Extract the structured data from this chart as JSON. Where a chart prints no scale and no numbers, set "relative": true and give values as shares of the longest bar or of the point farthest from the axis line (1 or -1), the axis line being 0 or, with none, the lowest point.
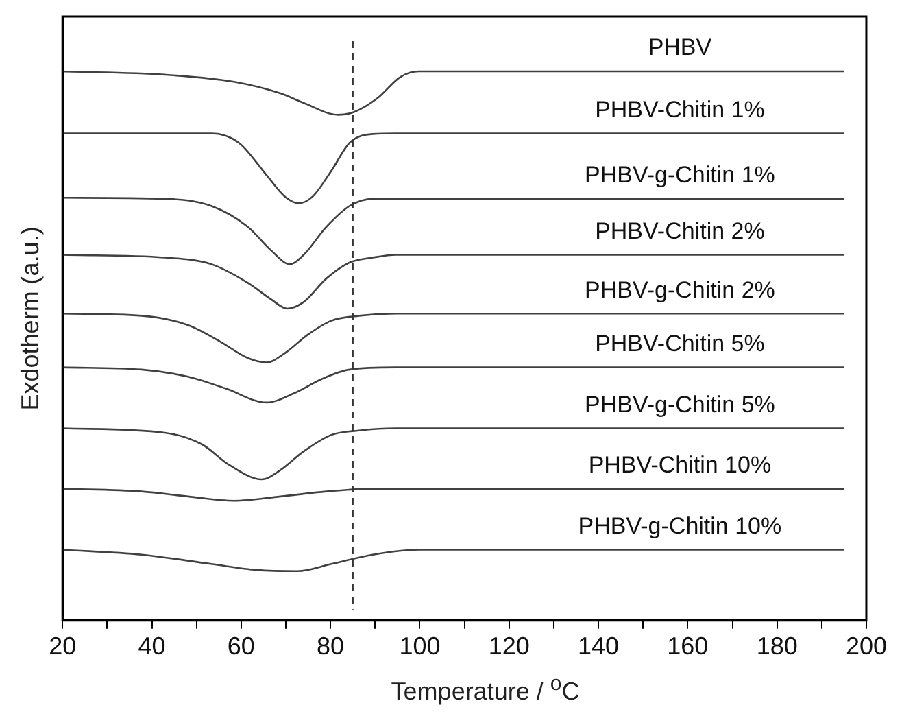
{
  "chart_data": {
    "type": "line",
    "xlabel": "Temperature / $^{o}$C",
    "ylabel": "Exdotherm (a.u.)",
    "relative": true,
    "xlim": [
      20,
      200
    ],
    "xticks": [
      20,
      {
        "value": 30,
        "label": null
      },
      40,
      {
        "value": 50,
        "label": null
      },
      60,
      {
        "value": 70,
        "label": null
      },
      80,
      {
        "value": 90,
        "label": null
      },
      100,
      {
        "value": 110,
        "label": null
      },
      120,
      {
        "value": 130,
        "label": null
      },
      140,
      {
        "value": 150,
        "label": null
      },
      160,
      {
        "value": 170,
        "label": null
      },
      180,
      {
        "value": 190,
        "label": null
      },
      200
    ],
    "grid": false,
    "legend": false,
    "marker": "none",
    "line_style": "solid",
    "ref_lines": [
      {
        "axis": "x",
        "value": 85,
        "color": "#333333",
        "line_style": "dashed"
      }
    ],
    "series": [
      {
        "name": "PHBV",
        "color": "#404040",
        "x": [
          20,
          42.9,
          58.4,
          68.8,
          73.9,
          81.7,
          85.3,
          90.5,
          95.7,
          99.8,
          195
        ],
        "values": [
          1.0,
          0.994,
          0.981,
          0.96,
          0.943,
          0.921,
          0.926,
          0.951,
          0.99,
          1.0,
          1.0
        ]
      },
      {
        "name": "PHBV-Chitin 1%",
        "color": "#404040",
        "x": [
          20,
          53.3,
          59.5,
          65.7,
          69.8,
          72.9,
          76.0,
          80.2,
          84.3,
          89.5,
          94.7,
          195
        ],
        "values": [
          0.887,
          0.887,
          0.87,
          0.811,
          0.772,
          0.76,
          0.772,
          0.819,
          0.87,
          0.886,
          0.887,
          0.887
        ]
      },
      {
        "name": "PHBV-g-Chitin 1%",
        "color": "#404040",
        "x": [
          20,
          42.9,
          53.3,
          61.5,
          66.7,
          70.9,
          74.0,
          79.1,
          84.3,
          89.5,
          195
        ],
        "values": [
          0.77,
          0.768,
          0.755,
          0.717,
          0.674,
          0.649,
          0.666,
          0.717,
          0.755,
          0.768,
          0.768
        ]
      },
      {
        "name": "PHBV-Chitin 2%",
        "color": "#404040",
        "x": [
          20,
          42.9,
          53.3,
          61.5,
          66.7,
          70.3,
          74.0,
          79.1,
          84.3,
          89.5,
          94.7,
          195
        ],
        "values": [
          0.666,
          0.661,
          0.649,
          0.615,
          0.585,
          0.568,
          0.58,
          0.623,
          0.652,
          0.661,
          0.666,
          0.666
        ]
      },
      {
        "name": "PHBV-g-Chitin 2%",
        "color": "#404040",
        "x": [
          20,
          37.7,
          48.1,
          55.3,
          61.5,
          65.7,
          69.8,
          75.0,
          80.2,
          86.4,
          94.7,
          195
        ],
        "values": [
          0.559,
          0.555,
          0.538,
          0.508,
          0.478,
          0.47,
          0.487,
          0.521,
          0.546,
          0.555,
          0.559,
          0.559
        ]
      },
      {
        "name": "PHBV-Chitin 5%",
        "color": "#404040",
        "x": [
          20,
          37.7,
          48.1,
          56.4,
          65.7,
          71.9,
          78.1,
          84.3,
          94.7,
          195
        ],
        "values": [
          0.461,
          0.457,
          0.444,
          0.423,
          0.397,
          0.414,
          0.44,
          0.457,
          0.461,
          0.461
        ]
      },
      {
        "name": "PHBV-g-Chitin 5%",
        "color": "#404040",
        "x": [
          20,
          42.9,
          51.2,
          57.4,
          64.6,
          68.8,
          74.0,
          80.2,
          86.4,
          94.7,
          195
        ],
        "values": [
          0.35,
          0.342,
          0.321,
          0.283,
          0.257,
          0.274,
          0.308,
          0.338,
          0.346,
          0.35,
          0.35
        ]
      },
      {
        "name": "PHBV-Chitin 10%",
        "color": "#404040",
        "x": [
          20,
          37.7,
          48.1,
          58.4,
          68.8,
          79.1,
          89.5,
          195
        ],
        "values": [
          0.24,
          0.235,
          0.226,
          0.218,
          0.226,
          0.235,
          0.24,
          0.24
        ]
      },
      {
        "name": "PHBV-g-Chitin 10%",
        "color": "#404040",
        "x": [
          20,
          37.7,
          53.3,
          63.6,
          72.6,
          80.2,
          89.5,
          99.8,
          195
        ],
        "values": [
          0.129,
          0.12,
          0.103,
          0.092,
          0.09,
          0.103,
          0.12,
          0.129,
          0.129
        ]
      }
    ]
  }
}
